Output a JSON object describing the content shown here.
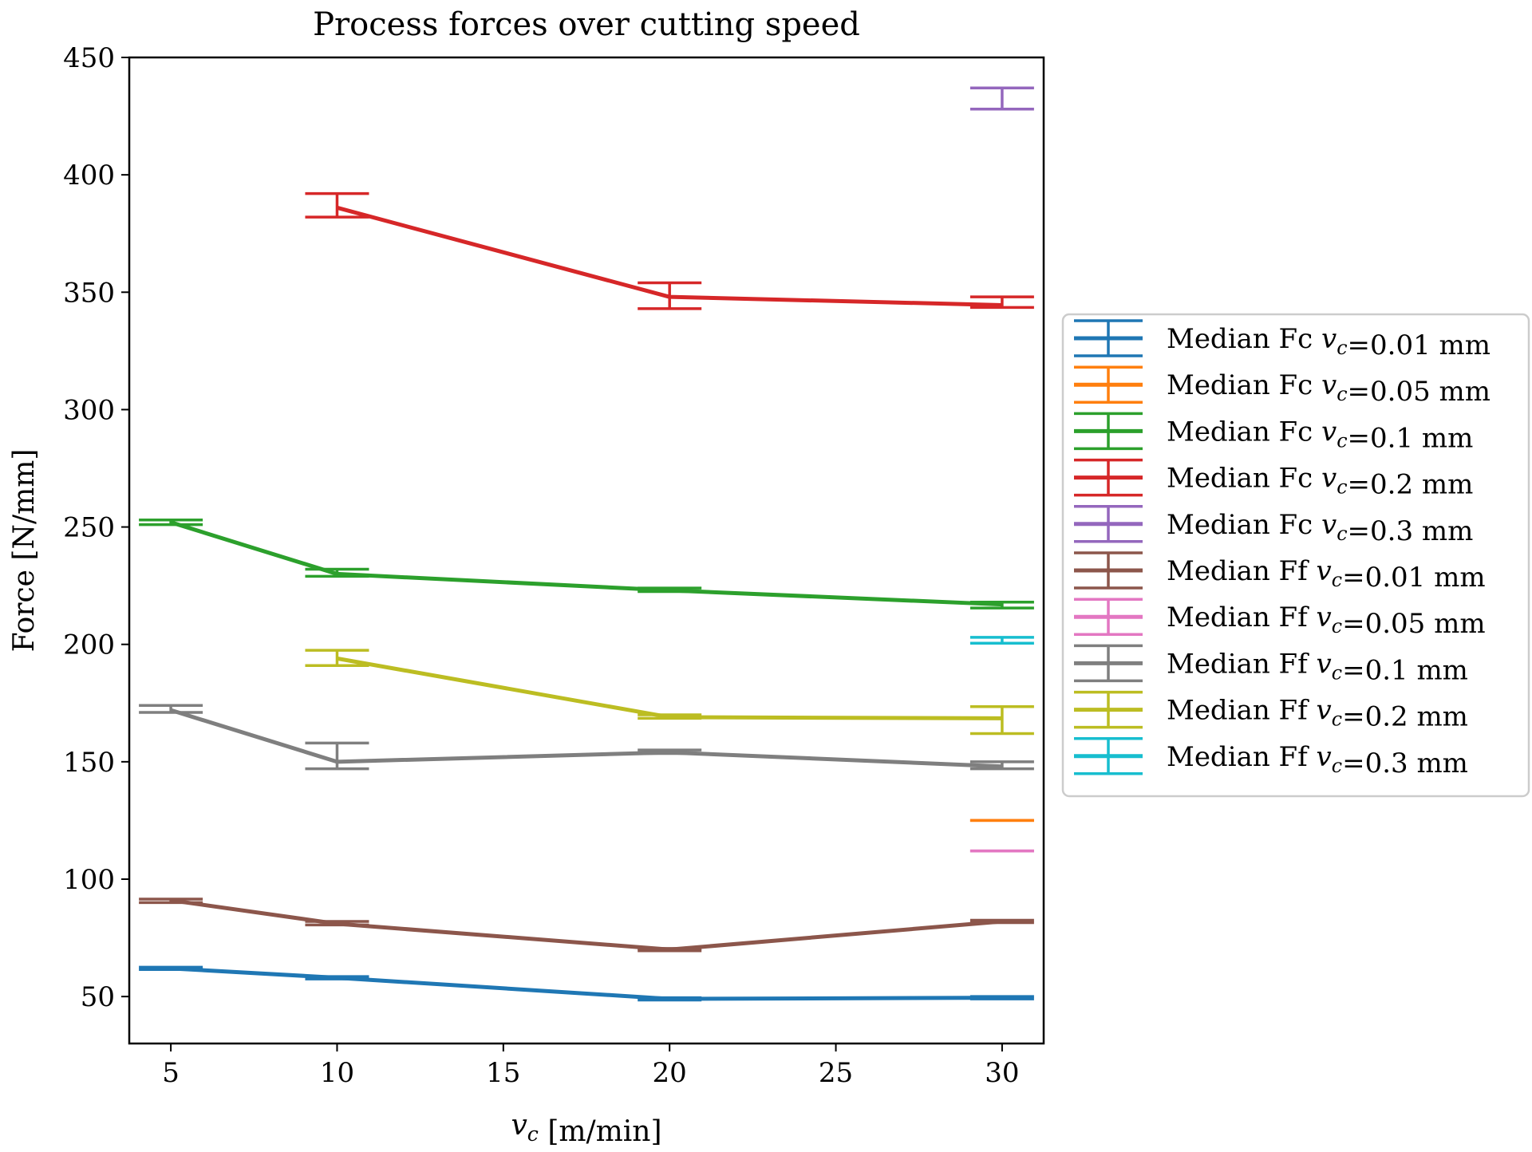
{
  "chart_data": {
    "type": "line",
    "title": "Process forces over cutting speed",
    "xlabel": "v_c [m/min]",
    "ylabel": "Force [N/mm]",
    "xlim": [
      3.75,
      31.25
    ],
    "ylim": [
      30,
      450
    ],
    "xticks": [
      5,
      10,
      15,
      20,
      25,
      30
    ],
    "yticks": [
      50,
      100,
      150,
      200,
      250,
      300,
      350,
      400,
      450
    ],
    "grid": false,
    "legend_position": "right, outside plot",
    "error_bars": true,
    "series": [
      {
        "name": "Median Fc v_c=0.01 mm",
        "color": "#1f77b4",
        "points": [
          {
            "x": 5,
            "y": 62,
            "lo": 61.5,
            "hi": 62.5
          },
          {
            "x": 10,
            "y": 58,
            "lo": 57.5,
            "hi": 58.5
          },
          {
            "x": 20,
            "y": 49,
            "lo": 48.5,
            "hi": 49.5
          },
          {
            "x": 30,
            "y": 49.5,
            "lo": 49,
            "hi": 50
          }
        ]
      },
      {
        "name": "Median Fc v_c=0.05 mm",
        "color": "#ff7f0e",
        "points": [
          {
            "x": 30,
            "y": 125,
            "lo": 125,
            "hi": 125
          }
        ]
      },
      {
        "name": "Median Fc v_c=0.1 mm",
        "color": "#2ca02c",
        "points": [
          {
            "x": 5,
            "y": 252,
            "lo": 251,
            "hi": 253
          },
          {
            "x": 10,
            "y": 230,
            "lo": 229,
            "hi": 232
          },
          {
            "x": 20,
            "y": 223,
            "lo": 222.5,
            "hi": 224
          },
          {
            "x": 30,
            "y": 217,
            "lo": 215.5,
            "hi": 218
          }
        ]
      },
      {
        "name": "Median Fc v_c=0.2 mm",
        "color": "#d62728",
        "points": [
          {
            "x": 10,
            "y": 386,
            "lo": 382,
            "hi": 392
          },
          {
            "x": 20,
            "y": 348,
            "lo": 343,
            "hi": 354
          },
          {
            "x": 30,
            "y": 344.5,
            "lo": 343.5,
            "hi": 348
          }
        ]
      },
      {
        "name": "Median Fc v_c=0.3 mm",
        "color": "#9467bd",
        "points": [
          {
            "x": 30,
            "y": 430,
            "lo": 428,
            "hi": 437
          }
        ]
      },
      {
        "name": "Median Ff v_c=0.01 mm",
        "color": "#8c564b",
        "points": [
          {
            "x": 5,
            "y": 91,
            "lo": 90,
            "hi": 91.5
          },
          {
            "x": 10,
            "y": 81,
            "lo": 80.5,
            "hi": 82
          },
          {
            "x": 20,
            "y": 70,
            "lo": 69.5,
            "hi": 70.5
          },
          {
            "x": 30,
            "y": 82,
            "lo": 81.5,
            "hi": 82.5
          }
        ]
      },
      {
        "name": "Median Ff v_c=0.05 mm",
        "color": "#e377c2",
        "points": [
          {
            "x": 30,
            "y": 112,
            "lo": 112,
            "hi": 112
          }
        ]
      },
      {
        "name": "Median Ff v_c=0.1 mm",
        "color": "#7f7f7f",
        "points": [
          {
            "x": 5,
            "y": 172,
            "lo": 171,
            "hi": 174
          },
          {
            "x": 10,
            "y": 150,
            "lo": 147,
            "hi": 158
          },
          {
            "x": 20,
            "y": 154,
            "lo": 153.5,
            "hi": 155
          },
          {
            "x": 30,
            "y": 148,
            "lo": 147,
            "hi": 150
          }
        ]
      },
      {
        "name": "Median Ff v_c=0.2 mm",
        "color": "#bcbd22",
        "points": [
          {
            "x": 10,
            "y": 194,
            "lo": 191,
            "hi": 197.5
          },
          {
            "x": 20,
            "y": 169,
            "lo": 168.5,
            "hi": 170
          },
          {
            "x": 30,
            "y": 168.5,
            "lo": 162,
            "hi": 173.5
          }
        ]
      },
      {
        "name": "Median Ff v_c=0.3 mm",
        "color": "#17becf",
        "points": [
          {
            "x": 30,
            "y": 202,
            "lo": 200.5,
            "hi": 203
          }
        ]
      }
    ]
  }
}
